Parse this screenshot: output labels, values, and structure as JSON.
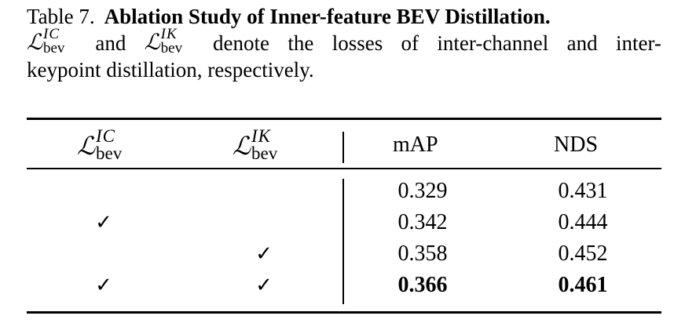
{
  "caption": {
    "table_label": "Table 7.",
    "title": "Ablation Study of Inner-feature BEV Distillation.",
    "loss_symbol": "ℒ",
    "loss_subscript": "bev",
    "loss_ic_superscript": "IC",
    "loss_ik_superscript": "IK",
    "text_and": "and",
    "text_rest_line2": [
      "denote",
      "the",
      "losses",
      "of",
      "inter-channel",
      "and",
      "inter-"
    ],
    "text_line3": "keypoint distillation, respectively."
  },
  "table": {
    "headers": {
      "map": "mAP",
      "nds": "NDS"
    },
    "check_glyph": "✓",
    "rows": [
      {
        "ic": false,
        "ik": false,
        "map": "0.329",
        "nds": "0.431",
        "bold": false
      },
      {
        "ic": true,
        "ik": false,
        "map": "0.342",
        "nds": "0.444",
        "bold": false
      },
      {
        "ic": false,
        "ik": true,
        "map": "0.358",
        "nds": "0.452",
        "bold": false
      },
      {
        "ic": true,
        "ik": true,
        "map": "0.366",
        "nds": "0.461",
        "bold": true
      }
    ]
  }
}
